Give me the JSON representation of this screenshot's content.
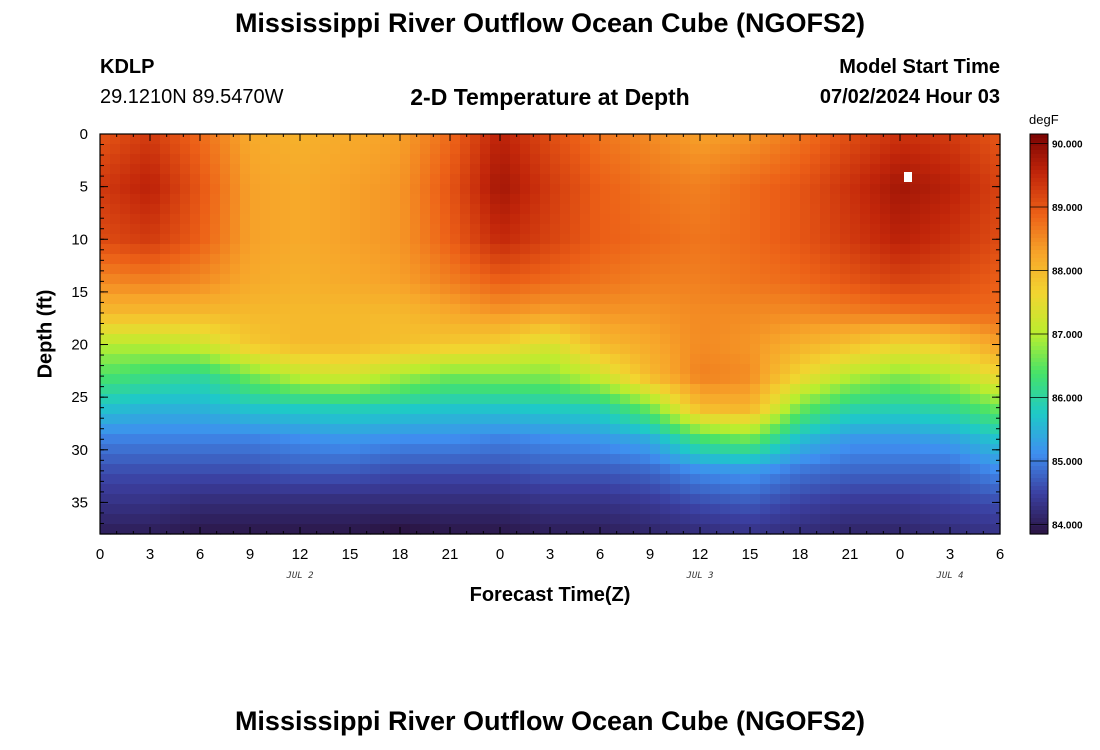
{
  "header": {
    "title": "Mississippi River Outflow Ocean Cube (NGOFS2)",
    "station_id": "KDLP",
    "station_coords": "29.1210N  89.5470W",
    "subtitle": "2-D Temperature at Depth",
    "model_start_label": "Model Start Time",
    "model_start_value": "07/02/2024 Hour 03"
  },
  "footer": {
    "title": "Mississippi River Outflow Ocean Cube (NGOFS2)"
  },
  "chart_data": {
    "type": "heatmap",
    "title": "2-D Temperature at Depth",
    "xlabel": "Forecast Time(Z)",
    "ylabel": "Depth (ft)",
    "x_range_hours": [
      0,
      54
    ],
    "x_tick_labels": [
      "0",
      "3",
      "6",
      "9",
      "12",
      "15",
      "18",
      "21",
      "0",
      "3",
      "6",
      "9",
      "12",
      "15",
      "18",
      "21",
      "0",
      "3",
      "6"
    ],
    "date_labels": [
      {
        "label": "JUL 2",
        "hour": 12
      },
      {
        "label": "JUL 3",
        "hour": 36
      },
      {
        "label": "JUL 4",
        "hour": 51
      }
    ],
    "y_range_ft": [
      0,
      38
    ],
    "y_ticks": [
      0,
      5,
      10,
      15,
      20,
      25,
      30,
      35
    ],
    "colorbar": {
      "unit": "degF",
      "min": 83.85,
      "max": 90.15,
      "tick_values": [
        84,
        85,
        86,
        87,
        88,
        89,
        90
      ],
      "tick_labels": [
        "84.000",
        "85.000",
        "86.000",
        "87.000",
        "88.000",
        "89.000",
        "90.000"
      ],
      "colors": [
        "#2a1442",
        "#3b3fa0",
        "#3f8ef0",
        "#1ec9c8",
        "#45e26a",
        "#b9ee2f",
        "#f2d530",
        "#f7a52a",
        "#ec6017",
        "#c2260a",
        "#7a0403"
      ]
    },
    "depth_levels_ft": [
      0,
      5,
      10,
      14,
      17,
      20,
      23,
      26,
      29,
      32,
      35,
      38
    ],
    "time_hours": [
      0,
      3,
      6,
      9,
      12,
      15,
      18,
      21,
      24,
      27,
      30,
      33,
      36,
      39,
      42,
      45,
      48,
      51,
      54
    ],
    "temperature_degF": [
      [
        89.0,
        89.3,
        88.8,
        88.2,
        88.1,
        88.2,
        88.3,
        88.8,
        89.6,
        89.1,
        88.7,
        88.5,
        88.3,
        88.4,
        88.7,
        89.1,
        89.4,
        89.3,
        89.0
      ],
      [
        89.3,
        89.6,
        89.0,
        88.3,
        88.2,
        88.3,
        88.4,
        89.0,
        89.8,
        89.3,
        88.9,
        88.7,
        88.6,
        88.8,
        89.0,
        89.4,
        89.8,
        89.6,
        89.2
      ],
      [
        89.1,
        89.3,
        88.9,
        88.3,
        88.2,
        88.3,
        88.4,
        88.9,
        89.5,
        89.2,
        88.9,
        88.8,
        88.7,
        88.8,
        89.0,
        89.3,
        89.6,
        89.4,
        89.1
      ],
      [
        88.5,
        88.6,
        88.5,
        88.2,
        88.1,
        88.2,
        88.3,
        88.6,
        88.9,
        88.8,
        88.7,
        88.6,
        88.6,
        88.7,
        88.8,
        89.0,
        89.2,
        89.1,
        88.9
      ],
      [
        88.0,
        88.0,
        88.0,
        88.0,
        88.0,
        88.0,
        88.0,
        88.2,
        88.4,
        88.3,
        88.4,
        88.4,
        88.5,
        88.5,
        88.5,
        88.6,
        88.7,
        88.8,
        88.8
      ],
      [
        87.0,
        87.0,
        87.2,
        87.8,
        88.0,
        88.0,
        87.9,
        87.8,
        87.7,
        87.3,
        88.0,
        88.2,
        88.5,
        88.4,
        88.1,
        87.9,
        87.6,
        87.8,
        88.3
      ],
      [
        86.4,
        86.2,
        86.0,
        86.6,
        87.1,
        87.3,
        86.9,
        86.6,
        86.7,
        86.7,
        87.2,
        88.0,
        88.6,
        88.5,
        87.6,
        87.0,
        86.7,
        87.0,
        87.6
      ],
      [
        85.7,
        85.5,
        85.5,
        85.7,
        85.8,
        85.9,
        85.8,
        85.7,
        85.7,
        85.8,
        85.9,
        86.6,
        88.0,
        88.1,
        86.6,
        86.0,
        85.9,
        86.1,
        86.6
      ],
      [
        85.0,
        85.0,
        85.0,
        85.0,
        85.1,
        85.2,
        85.1,
        85.1,
        85.0,
        85.1,
        85.2,
        85.4,
        86.3,
        86.6,
        85.6,
        85.2,
        85.2,
        85.3,
        85.7
      ],
      [
        84.6,
        84.6,
        84.6,
        84.6,
        84.7,
        84.7,
        84.6,
        84.6,
        84.6,
        84.7,
        84.7,
        84.8,
        85.1,
        85.2,
        84.9,
        84.8,
        84.8,
        84.8,
        85.1
      ],
      [
        84.3,
        84.3,
        84.2,
        84.2,
        84.2,
        84.2,
        84.2,
        84.2,
        84.2,
        84.3,
        84.3,
        84.4,
        84.6,
        84.7,
        84.5,
        84.4,
        84.4,
        84.5,
        84.6
      ],
      [
        84.0,
        84.0,
        83.9,
        83.9,
        83.9,
        83.9,
        83.8,
        83.9,
        83.9,
        84.0,
        84.0,
        84.1,
        84.2,
        84.3,
        84.2,
        84.1,
        84.1,
        84.2,
        84.3
      ]
    ]
  }
}
